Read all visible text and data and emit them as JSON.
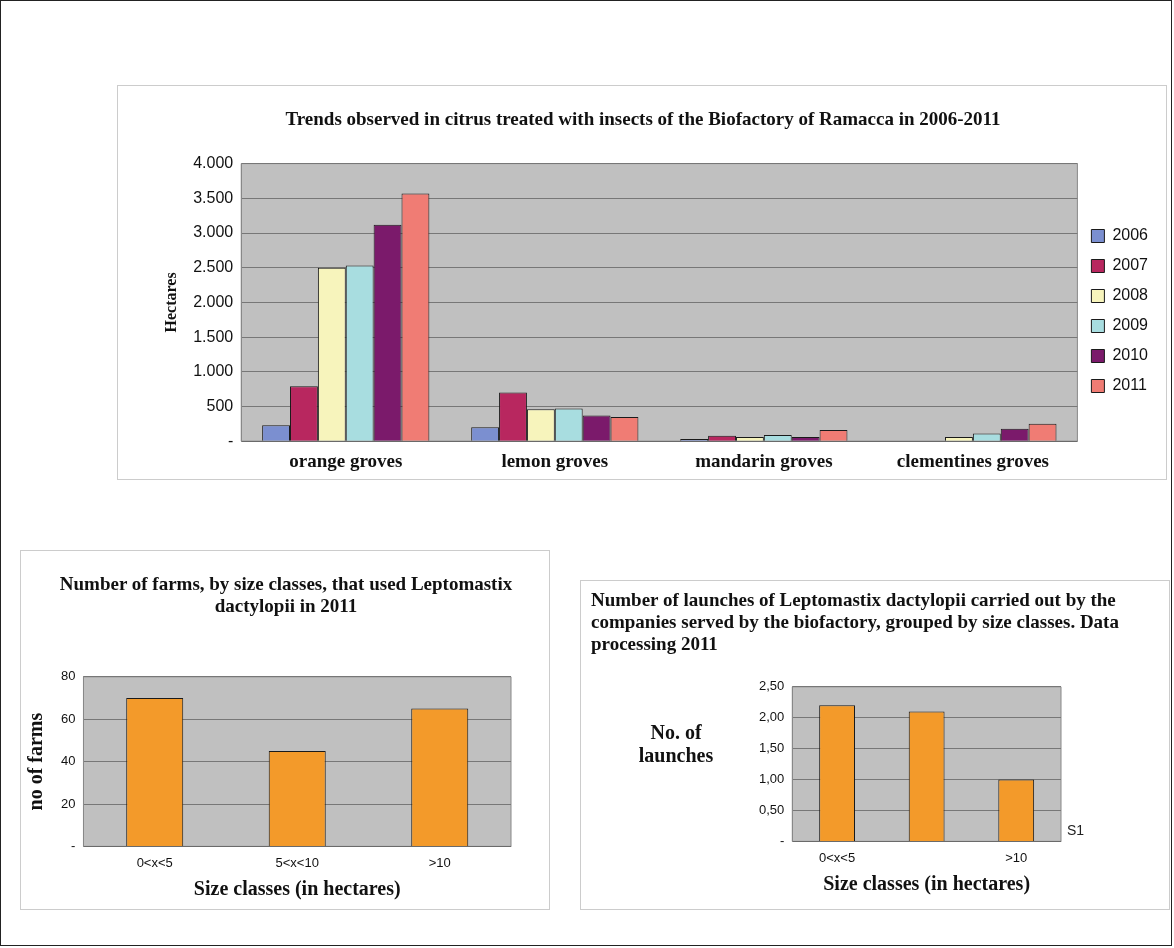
{
  "chart_data": [
    {
      "type": "bar",
      "title": "Trends observed in citrus treated with insects of the Biofactory of Ramacca in 2006-2011",
      "ylabel": "Hectares",
      "categories": [
        "orange groves",
        "lemon groves",
        "mandarin groves",
        "clementines groves"
      ],
      "series": [
        {
          "name": "2006",
          "color": "#7b8fd0",
          "values": [
            230,
            200,
            30,
            0
          ]
        },
        {
          "name": "2007",
          "color": "#b8275f",
          "values": [
            790,
            700,
            80,
            0
          ]
        },
        {
          "name": "2008",
          "color": "#f7f4bc",
          "values": [
            2500,
            460,
            60,
            60
          ]
        },
        {
          "name": "2009",
          "color": "#a8dde0",
          "values": [
            2530,
            470,
            90,
            110
          ]
        },
        {
          "name": "2010",
          "color": "#7b1a6b",
          "values": [
            3120,
            370,
            60,
            180
          ]
        },
        {
          "name": "2011",
          "color": "#f07c74",
          "values": [
            3570,
            350,
            160,
            250
          ]
        }
      ],
      "ylim": [
        0,
        4000
      ],
      "yticks": [
        {
          "value": 0,
          "label": "-"
        },
        500,
        {
          "value": 1000,
          "label": "1.000"
        },
        {
          "value": 1500,
          "label": "1.500"
        },
        {
          "value": 2000,
          "label": "2.000"
        },
        {
          "value": 2500,
          "label": "2.500"
        },
        {
          "value": 3000,
          "label": "3.000"
        },
        {
          "value": 3500,
          "label": "3.500"
        },
        {
          "value": 4000,
          "label": "4.000"
        }
      ],
      "grid": "y",
      "legend": "right"
    },
    {
      "type": "bar",
      "title": "Number of farms, by size classes, that used Leptomastix dactylopii in 2011",
      "ylabel": "no of farms",
      "xlabel": "Size classes (in hectares)",
      "categories": [
        "0<x<5",
        "5<x<10",
        ">10"
      ],
      "values": [
        70,
        45,
        65
      ],
      "color": "#f39a2a",
      "ylim": [
        0,
        80
      ],
      "yticks": [
        {
          "value": 0,
          "label": "-"
        },
        20,
        40,
        60,
        80
      ],
      "grid": "y"
    },
    {
      "type": "bar",
      "title": "Number of launches of Leptomastix dactylopii carried out by the companies served by the biofactory, grouped by size classes. Data processing 2011",
      "ylabel": "No. of launches",
      "xlabel": "Size classes (in hectares)",
      "categories": [
        "0<x<5",
        null,
        ">10"
      ],
      "series": [
        {
          "name": "S1",
          "color": "#f39a2a",
          "values": [
            2.2,
            2.1,
            1.0
          ]
        }
      ],
      "ylim": [
        0,
        2.5
      ],
      "yticks": [
        {
          "value": 0,
          "label": "-"
        },
        {
          "value": 0.5,
          "label": "0,50"
        },
        {
          "value": 1,
          "label": "1,00"
        },
        {
          "value": 1.5,
          "label": "1,50"
        },
        {
          "value": 2,
          "label": "2,00"
        },
        {
          "value": 2.5,
          "label": "2,50"
        }
      ],
      "grid": "y"
    }
  ]
}
